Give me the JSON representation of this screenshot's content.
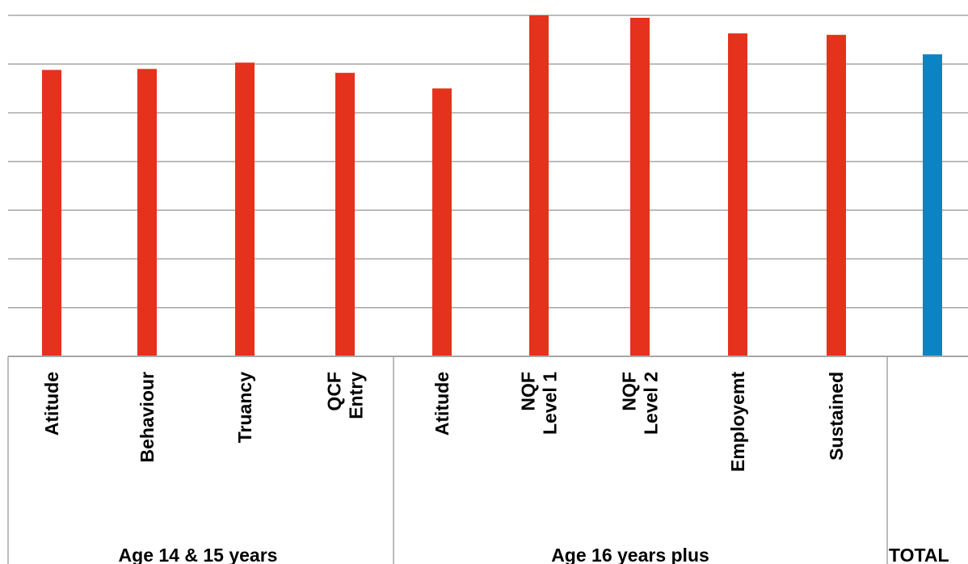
{
  "chart_data": {
    "type": "bar",
    "title": "",
    "xlabel": "",
    "ylabel": "",
    "ylim": [
      0,
      7
    ],
    "grid": true,
    "legend": "none",
    "categories": [
      {
        "lines": [
          "Atitude"
        ],
        "group": 0
      },
      {
        "lines": [
          "Behaviour"
        ],
        "group": 0
      },
      {
        "lines": [
          "Truancy"
        ],
        "group": 0
      },
      {
        "lines": [
          "QCF",
          "Entry"
        ],
        "group": 0
      },
      {
        "lines": [
          "Atitude"
        ],
        "group": 1
      },
      {
        "lines": [
          "NQF",
          "Level 1"
        ],
        "group": 1
      },
      {
        "lines": [
          "NQF",
          "Level 2"
        ],
        "group": 1
      },
      {
        "lines": [
          "Employemt"
        ],
        "group": 1
      },
      {
        "lines": [
          "Sustained"
        ],
        "group": 1
      },
      {
        "lines": [],
        "group": 2
      }
    ],
    "groups": [
      "Age 14 & 15 years",
      "Age 16 years plus",
      "TOTAL"
    ],
    "values": [
      5.88,
      5.9,
      6.03,
      5.82,
      5.5,
      7.0,
      6.95,
      6.63,
      6.6,
      6.2
    ],
    "colors": [
      "#e5321c",
      "#e5321c",
      "#e5321c",
      "#e5321c",
      "#e5321c",
      "#e5321c",
      "#e5321c",
      "#e5321c",
      "#e5321c",
      "#0a84c6"
    ]
  }
}
